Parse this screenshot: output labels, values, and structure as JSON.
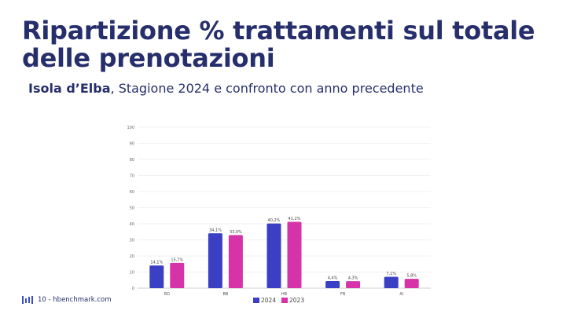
{
  "slide": {
    "title_line1": "Ripartizione % trattamenti sul totale",
    "title_line2": "delle prenotazioni",
    "subtitle_bold": "Isola d’Elba",
    "subtitle_rest": ", Stagione 2024 e confronto con anno precedente"
  },
  "footer": {
    "page_text": "10 - hbenchmark.com"
  },
  "colors": {
    "title": "#262f6b",
    "series_2024": "#3b3fc4",
    "series_2023": "#d633a9",
    "grid": "#e6e6e6"
  },
  "chart_data": {
    "type": "bar",
    "categories": [
      "RO",
      "BB",
      "HB",
      "FB",
      "AI"
    ],
    "series": [
      {
        "name": "2024",
        "values": [
          14.1,
          34.1,
          40.2,
          4.4,
          7.1
        ],
        "labels": [
          "14,1%",
          "34,1%",
          "40,2%",
          "4,4%",
          "7,1%"
        ]
      },
      {
        "name": "2023",
        "values": [
          15.7,
          33.0,
          41.2,
          4.3,
          5.8
        ],
        "labels": [
          "15,7%",
          "33,0%",
          "41,2%",
          "4,3%",
          "5,8%"
        ]
      }
    ],
    "yticks": [
      "0",
      "10",
      "20",
      "30",
      "40",
      "50",
      "60",
      "70",
      "80",
      "90",
      "100"
    ],
    "ylim": [
      0,
      100
    ],
    "grid": true,
    "legend": "bottom"
  }
}
